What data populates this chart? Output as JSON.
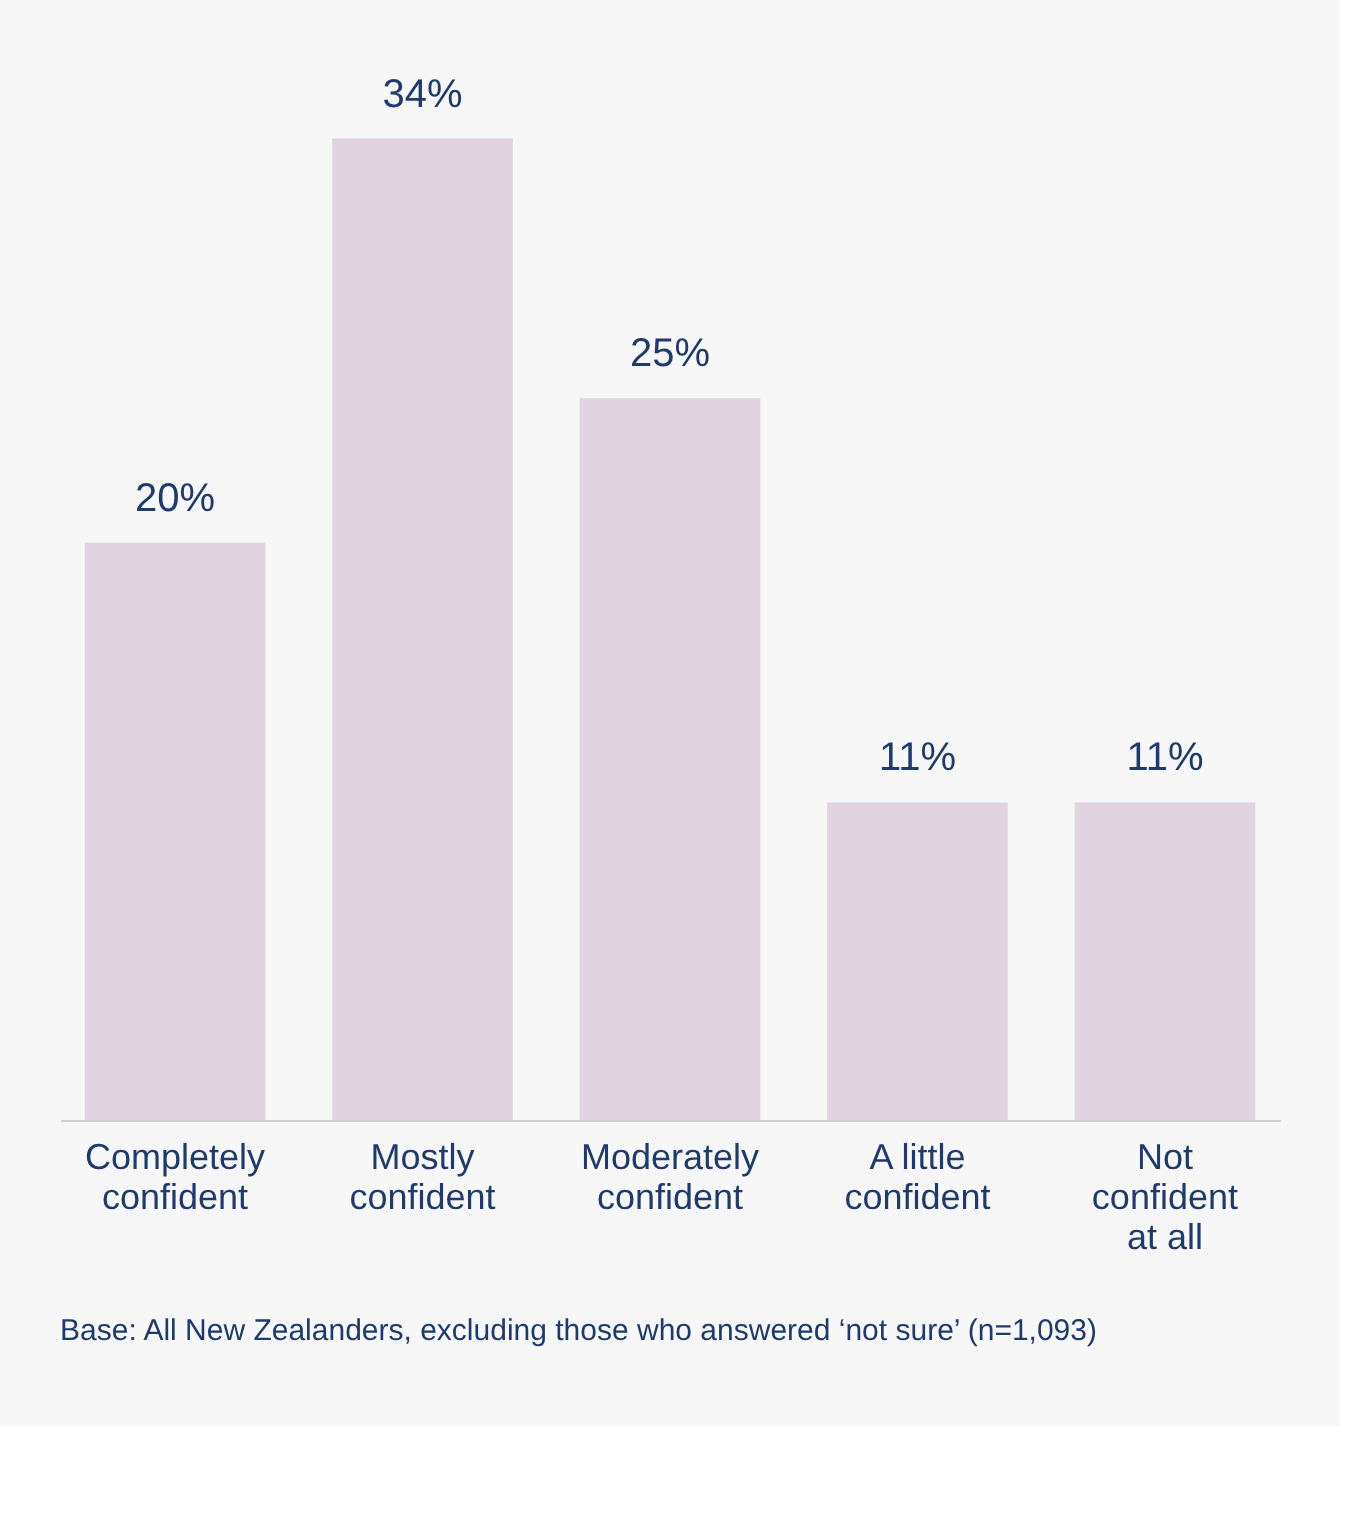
{
  "chart_data": {
    "type": "bar",
    "categories": [
      "Completely confident",
      "Mostly confident",
      "Moderately confident",
      "A little confident",
      "Not confident at all"
    ],
    "values": [
      20,
      34,
      25,
      11,
      11
    ],
    "value_labels": [
      "20%",
      "34%",
      "25%",
      "11%",
      "11%"
    ],
    "color": "#e0d4e0",
    "annotations": [
      "Base: All New Zealanders, excluding those who answered ‘not sure’ (n=1,093)"
    ],
    "grid": false
  }
}
